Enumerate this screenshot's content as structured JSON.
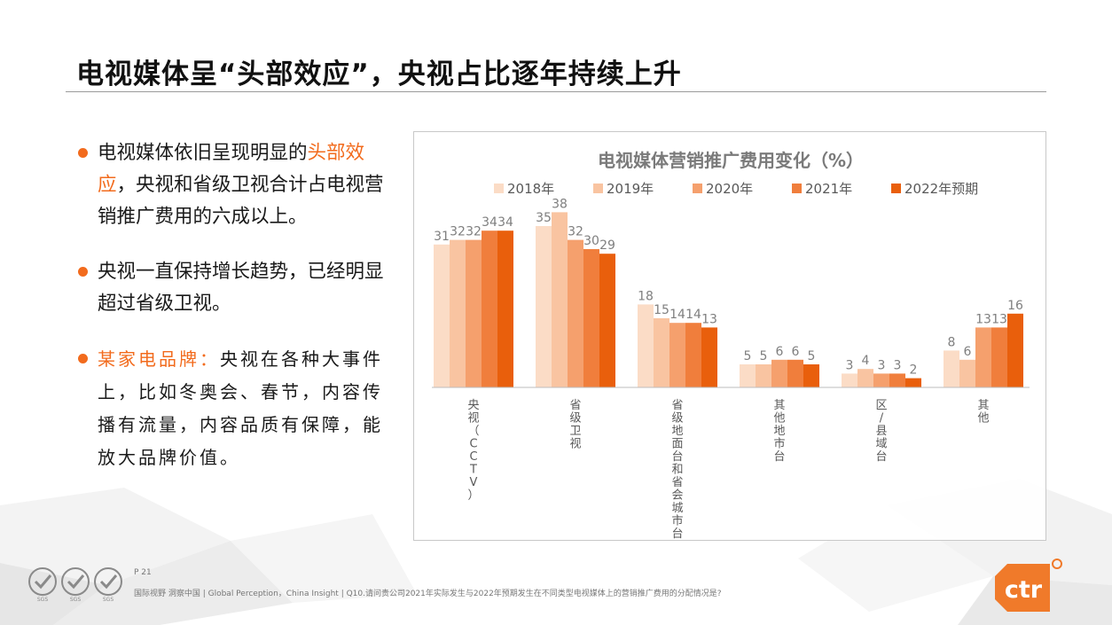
{
  "page": {
    "title": "电视媒体呈“头部效应”，央视占比逐年持续上升"
  },
  "bullets": {
    "b1_pre": "电视媒体依旧呈现明显的",
    "b1_hl": "头部效应",
    "b1_post": "，央视和省级卫视合计占电视营销推广费用的六成以上。",
    "b2": "央视一直保持增长趋势，已经明显超过省级卫视。",
    "b3_lead": "某家电品牌：",
    "b3_text": "央视在各种大事件上，比如冬奥会、春节，内容传播有流量，内容品质有保障，能放大品牌价值。"
  },
  "footer": {
    "page_label": "P 21",
    "note": "国际视野 洞察中国 | Global Perception，China Insight | Q10.请问贵公司2021年实际发生与2022年预期发生在不同类型电视媒体上的营销推广费用的分配情况是?",
    "logo_text": "ctr",
    "cert_text": "SGS"
  },
  "chart_data": {
    "type": "bar",
    "title": "电视媒体营销推广费用变化（%）",
    "categories": [
      "央视（CCTV）",
      "省级卫视",
      "省级地面台和省会城市台",
      "其他地市台",
      "区/县域台",
      "其他"
    ],
    "series": [
      {
        "name": "2018年",
        "color": "#fbdcc6",
        "values": [
          31,
          35,
          18,
          5,
          3,
          8
        ]
      },
      {
        "name": "2019年",
        "color": "#f9c4a1",
        "values": [
          32,
          38,
          15,
          5,
          4,
          6
        ]
      },
      {
        "name": "2020年",
        "color": "#f5a06d",
        "values": [
          32,
          32,
          14,
          6,
          3,
          13
        ]
      },
      {
        "name": "2021年",
        "color": "#f07e3c",
        "values": [
          34,
          30,
          14,
          6,
          3,
          13
        ]
      },
      {
        "name": "2022年预期",
        "color": "#e95f0c",
        "values": [
          34,
          29,
          13,
          5,
          2,
          16
        ]
      }
    ],
    "ylim": [
      0,
      40
    ],
    "legend": "top",
    "grid": false
  }
}
